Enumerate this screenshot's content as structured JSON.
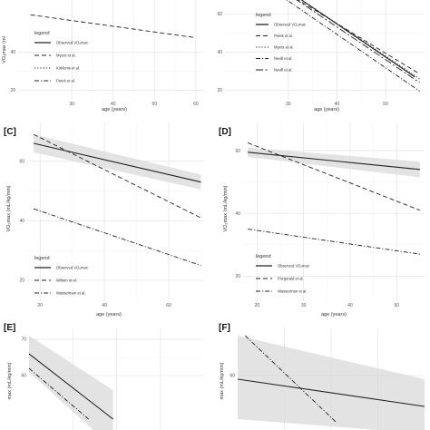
{
  "chart_data": [
    {
      "type": "line",
      "panel_label": "",
      "ylabel": "VO₂max (ml",
      "xlabel": "age (years)",
      "x_ticks": [
        "30",
        "40",
        "50",
        "60"
      ],
      "y_ticks": [
        "40",
        "20"
      ],
      "xlim": [
        17,
        62
      ],
      "ylim": [
        15,
        72
      ],
      "legend_title": "legend",
      "series": [
        {
          "name": "Observed VO₂max",
          "style": "solid",
          "x": [],
          "y": []
        },
        {
          "name": "Myers et al.",
          "style": "dashed",
          "x": [
            20,
            60
          ],
          "y": [
            59.5,
            47.5
          ]
        },
        {
          "name": "Koklonis et al.",
          "style": "dotted",
          "x": [
            50,
            62
          ],
          "y": [
            76,
            68
          ]
        },
        {
          "name": "Petek et al.",
          "style": "dotdash",
          "x": [
            50,
            62
          ],
          "y": [
            76,
            69.5
          ]
        }
      ]
    },
    {
      "type": "line",
      "panel_label": "",
      "ylabel": "",
      "xlabel": "age (years)",
      "x_ticks": [
        "30",
        "40",
        "50"
      ],
      "y_ticks": [
        "60",
        "40",
        "20"
      ],
      "xlim": [
        17,
        58
      ],
      "ylim": [
        15,
        72
      ],
      "legend_title": "legend",
      "series": [
        {
          "name": "Observed VO₂max",
          "style": "solid",
          "x": [
            30,
            56
          ],
          "y": [
            72,
            27
          ]
        },
        {
          "name": "Petek et al.",
          "style": "dashed",
          "x": [
            29,
            57
          ],
          "y": [
            72,
            28.5
          ]
        },
        {
          "name": "Myers et al.",
          "style": "dotted",
          "x": [
            30,
            57
          ],
          "y": [
            72,
            26
          ]
        },
        {
          "name": "Nevill et al.",
          "style": "dotdash",
          "x": [
            27,
            57
          ],
          "y": [
            72,
            19.5
          ]
        },
        {
          "name": "Nevill et al.",
          "style": "longdash",
          "x": [
            29,
            57
          ],
          "y": [
            72,
            24
          ]
        }
      ]
    },
    {
      "type": "line",
      "panel_label": "[C]",
      "ylabel": "VO₂max (mL/kg/min)",
      "xlabel": "age (years)",
      "x_ticks": [
        "20",
        "40",
        "60"
      ],
      "y_ticks": [
        "60",
        "40",
        "20"
      ],
      "xlim": [
        16,
        71
      ],
      "ylim": [
        13,
        73
      ],
      "legend_title": "legend",
      "series": [
        {
          "name": "Observed VO₂max",
          "style": "solid",
          "x": [
            18,
            70
          ],
          "y": [
            66,
            53
          ],
          "ci_upper": [
            69,
            55.5
          ],
          "ci_lower": [
            63,
            50.5
          ]
        },
        {
          "name": "Wilson et al.",
          "style": "dashed",
          "x": [
            18,
            70
          ],
          "y": [
            69,
            41
          ]
        },
        {
          "name": "Wasserman et al.",
          "style": "dotdash",
          "x": [
            18,
            70
          ],
          "y": [
            44,
            25
          ]
        }
      ]
    },
    {
      "type": "line",
      "panel_label": "[D]",
      "ylabel": "VO₂max (mL/kg/min)",
      "xlabel": "age (years)",
      "x_ticks": [
        "20",
        "30",
        "40",
        "50"
      ],
      "y_ticks": [
        "60",
        "40",
        "20"
      ],
      "xlim": [
        17,
        56
      ],
      "ylim": [
        12,
        69
      ],
      "legend_title": "legend",
      "series": [
        {
          "name": "Observed VO₂max",
          "style": "solid",
          "x": [
            18,
            55
          ],
          "y": [
            59.5,
            54
          ],
          "ci_upper": [
            61,
            56.5
          ],
          "ci_lower": [
            58,
            51.5
          ]
        },
        {
          "name": "Fitzgerald et al.",
          "style": "dashed",
          "x": [
            18,
            55
          ],
          "y": [
            62.5,
            41
          ]
        },
        {
          "name": "Wasserman et al.",
          "style": "dotdash",
          "x": [
            18,
            55
          ],
          "y": [
            35,
            27
          ]
        }
      ]
    },
    {
      "type": "line",
      "panel_label": "[E]",
      "ylabel": "max (mL/kg/min)",
      "xlabel": "",
      "x_ticks": [],
      "y_ticks": [
        "70",
        "60"
      ],
      "xlim": [
        0,
        10
      ],
      "ylim": [
        45,
        73
      ],
      "legend_title": "",
      "series": [
        {
          "name": "",
          "style": "solid",
          "x": [
            0,
            4.8
          ],
          "y": [
            66,
            48
          ],
          "ci_upper": [
            71,
            56
          ],
          "ci_lower": [
            61,
            40
          ]
        },
        {
          "name": "",
          "style": "dotdash",
          "x": [
            0,
            3.4
          ],
          "y": [
            62,
            48
          ]
        }
      ]
    },
    {
      "type": "line",
      "panel_label": "[F]",
      "ylabel": "max (mL/kg/min)",
      "xlabel": "",
      "x_ticks": [],
      "y_ticks": [
        "60"
      ],
      "xlim": [
        0,
        10
      ],
      "ylim": [
        45,
        73
      ],
      "legend_title": "",
      "series": [
        {
          "name": "",
          "style": "solid",
          "x": [
            0,
            10
          ],
          "y": [
            59,
            51.5
          ],
          "ci_upper": [
            71,
            59
          ],
          "ci_lower": [
            48,
            44
          ]
        },
        {
          "name": "",
          "style": "dotdash",
          "x": [
            0.4,
            5.3
          ],
          "y": [
            71,
            47
          ]
        }
      ]
    }
  ]
}
